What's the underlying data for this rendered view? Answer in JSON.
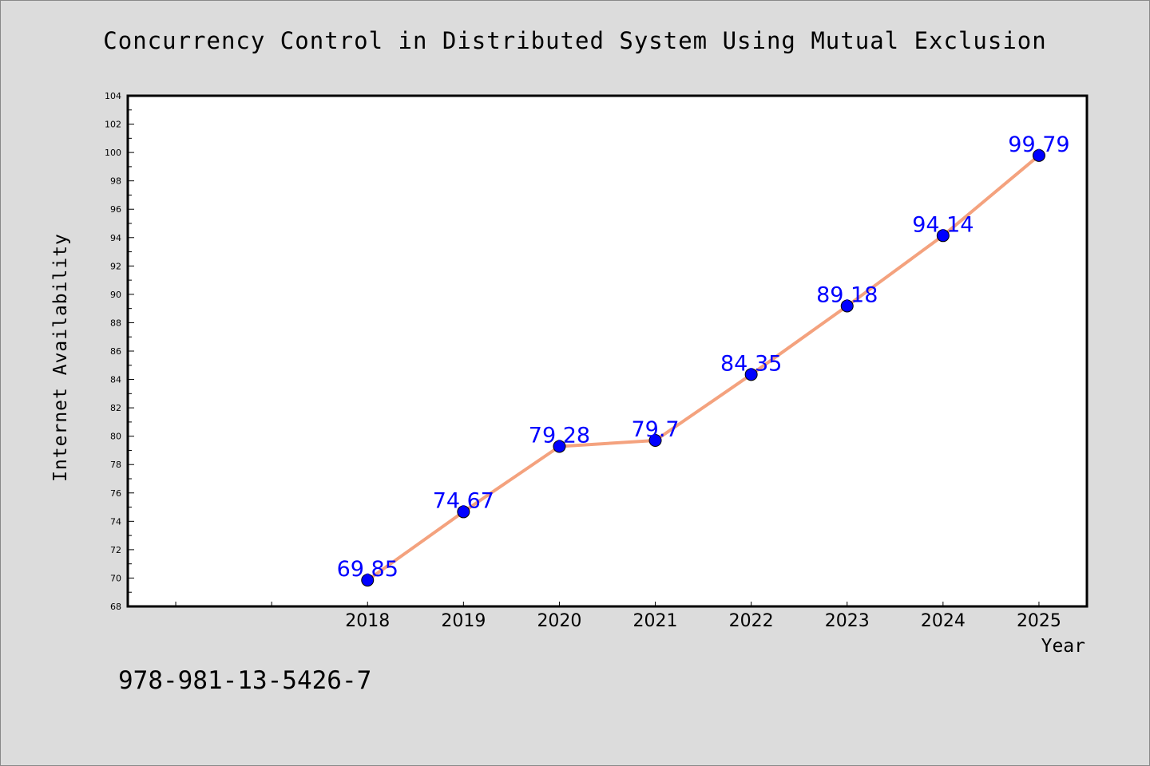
{
  "chart_data": {
    "type": "line",
    "title": "Concurrency Control in Distributed System Using Mutual Exclusion",
    "xlabel": "Year",
    "ylabel": "Internet Availability",
    "categories": [
      "2018",
      "2019",
      "2020",
      "2021",
      "2022",
      "2023",
      "2024",
      "2025"
    ],
    "x": [
      2018,
      2019,
      2020,
      2021,
      2022,
      2023,
      2024,
      2025
    ],
    "values": [
      69.85,
      74.67,
      79.28,
      79.7,
      84.35,
      89.18,
      94.14,
      99.79
    ],
    "data_labels": [
      "69.85",
      "74.67",
      "79.28",
      "79.7",
      "84.35",
      "89.18",
      "94.14",
      "99.79"
    ],
    "xlim": [
      2015.5,
      2025.5
    ],
    "ylim": [
      68,
      104
    ],
    "y_ticks": [
      68,
      70,
      72,
      74,
      76,
      78,
      80,
      82,
      84,
      86,
      88,
      90,
      92,
      94,
      96,
      98,
      100,
      102,
      104
    ],
    "x_ticks": [
      2016,
      2017,
      2018,
      2019,
      2020,
      2021,
      2022,
      2023,
      2024,
      2025
    ],
    "grid": false,
    "colors": {
      "line": "#f4a27e",
      "marker": "#0000ff",
      "label": "#0000ff",
      "background": "#dcdcdc",
      "plot_area": "#ffffff"
    }
  },
  "footer": {
    "text": "978-981-13-5426-7"
  }
}
